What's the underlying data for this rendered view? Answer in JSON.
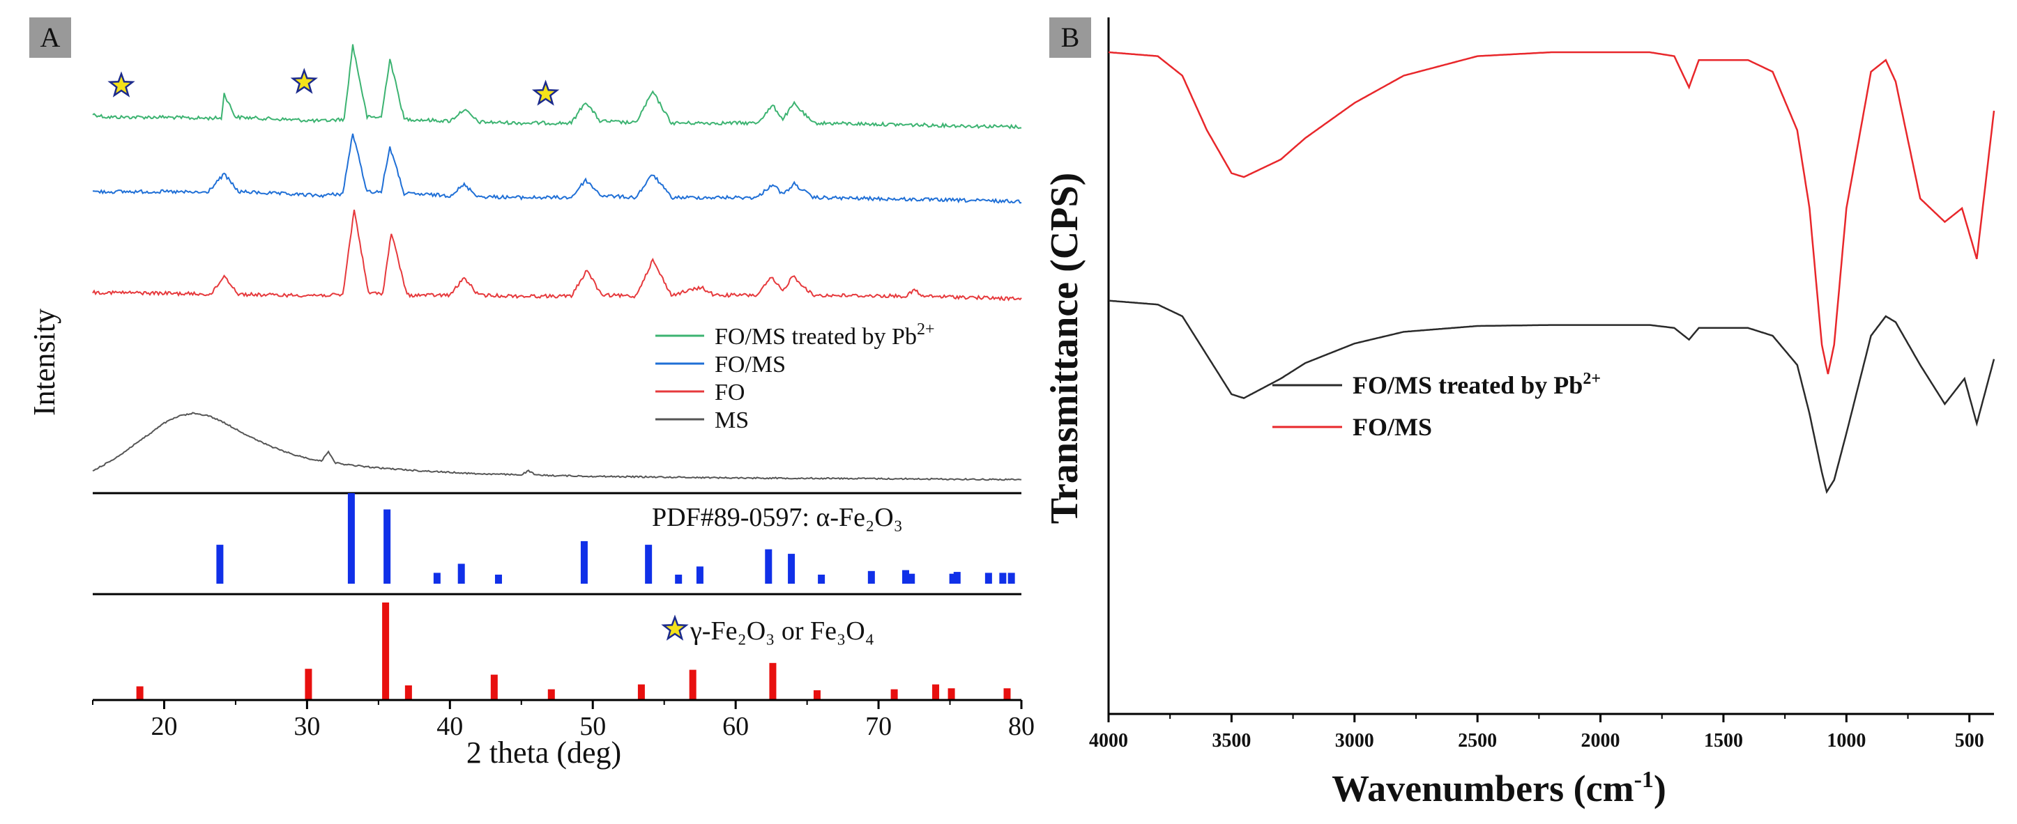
{
  "chart_data": [
    {
      "type": "line",
      "panel_label": "A",
      "xlabel": "2 theta (deg)",
      "ylabel": "Intensity",
      "xlim": [
        15,
        80
      ],
      "xticks": [
        "20",
        "30",
        "40",
        "50",
        "60",
        "70",
        "80"
      ],
      "series": [
        {
          "name": "FO/MS treated by Pb",
          "sup": "2+",
          "color": "#3cb371",
          "points": [
            [
              15,
              0.75
            ],
            [
              16,
              0.6
            ],
            [
              20,
              0.6
            ],
            [
              22,
              0.55
            ],
            [
              24,
              0.55
            ],
            [
              24.2,
              1.8
            ],
            [
              25,
              0.6
            ],
            [
              28,
              0.5
            ],
            [
              31,
              0.4
            ],
            [
              32.6,
              0.5
            ],
            [
              33.2,
              4.3
            ],
            [
              34.2,
              0.6
            ],
            [
              35.2,
              0.6
            ],
            [
              35.8,
              3.6
            ],
            [
              36.8,
              0.5
            ],
            [
              40,
              0.4
            ],
            [
              41,
              1.0
            ],
            [
              42,
              0.35
            ],
            [
              45,
              0.3
            ],
            [
              48.5,
              0.3
            ],
            [
              49.5,
              1.4
            ],
            [
              50.5,
              0.4
            ],
            [
              53,
              0.3
            ],
            [
              54.2,
              1.9
            ],
            [
              55.5,
              0.3
            ],
            [
              61.5,
              0.3
            ],
            [
              62.6,
              1.2
            ],
            [
              63.3,
              0.5
            ],
            [
              64.1,
              1.3
            ],
            [
              65.4,
              0.3
            ],
            [
              80,
              0.1
            ]
          ]
        },
        {
          "name": "FO/MS",
          "sup": "",
          "color": "#1f6fd6",
          "points": [
            [
              15,
              0.6
            ],
            [
              20,
              0.6
            ],
            [
              23,
              0.55
            ],
            [
              24.2,
              1.5
            ],
            [
              25.2,
              0.6
            ],
            [
              28,
              0.5
            ],
            [
              31,
              0.4
            ],
            [
              32.5,
              0.5
            ],
            [
              33.2,
              3.6
            ],
            [
              34.2,
              0.6
            ],
            [
              35.2,
              0.6
            ],
            [
              35.8,
              2.9
            ],
            [
              36.8,
              0.5
            ],
            [
              40,
              0.4
            ],
            [
              41,
              0.95
            ],
            [
              42,
              0.35
            ],
            [
              45,
              0.3
            ],
            [
              48.5,
              0.3
            ],
            [
              49.5,
              1.2
            ],
            [
              50.6,
              0.4
            ],
            [
              53,
              0.3
            ],
            [
              54.2,
              1.5
            ],
            [
              55.5,
              0.3
            ],
            [
              61.5,
              0.3
            ],
            [
              62.6,
              1.0
            ],
            [
              63.3,
              0.45
            ],
            [
              64.1,
              1.0
            ],
            [
              65.4,
              0.3
            ],
            [
              80,
              0.1
            ]
          ]
        },
        {
          "name": "FO",
          "sup": "",
          "color": "#e6393c",
          "points": [
            [
              15,
              0.55
            ],
            [
              20,
              0.5
            ],
            [
              23.3,
              0.45
            ],
            [
              24.2,
              1.4
            ],
            [
              25.2,
              0.45
            ],
            [
              28,
              0.4
            ],
            [
              32.5,
              0.4
            ],
            [
              33.3,
              4.8
            ],
            [
              34.3,
              0.5
            ],
            [
              35.3,
              0.5
            ],
            [
              35.9,
              3.6
            ],
            [
              37,
              0.4
            ],
            [
              40,
              0.4
            ],
            [
              41,
              1.3
            ],
            [
              42,
              0.4
            ],
            [
              45,
              0.35
            ],
            [
              48.5,
              0.35
            ],
            [
              49.6,
              1.7
            ],
            [
              50.6,
              0.4
            ],
            [
              53,
              0.35
            ],
            [
              54.2,
              2.2
            ],
            [
              55.5,
              0.4
            ],
            [
              57.6,
              0.8
            ],
            [
              58.5,
              0.4
            ],
            [
              61.5,
              0.4
            ],
            [
              62.5,
              1.3
            ],
            [
              63.3,
              0.6
            ],
            [
              64,
              1.4
            ],
            [
              65.4,
              0.4
            ],
            [
              72,
              0.35
            ],
            [
              72.5,
              0.7
            ],
            [
              73,
              0.35
            ],
            [
              76,
              0.3
            ],
            [
              80,
              0.2
            ]
          ]
        },
        {
          "name": "MS",
          "sup": "",
          "color": "#555555",
          "points": [
            [
              15,
              0.5
            ],
            [
              16,
              0.9
            ],
            [
              17,
              1.35
            ],
            [
              18,
              1.9
            ],
            [
              19,
              2.4
            ],
            [
              20,
              2.95
            ],
            [
              21,
              3.3
            ],
            [
              22,
              3.45
            ],
            [
              23,
              3.35
            ],
            [
              24,
              3.05
            ],
            [
              25,
              2.65
            ],
            [
              26,
              2.25
            ],
            [
              27,
              1.9
            ],
            [
              28,
              1.6
            ],
            [
              29,
              1.35
            ],
            [
              30,
              1.15
            ],
            [
              31,
              1.0
            ],
            [
              31.5,
              1.5
            ],
            [
              32,
              0.9
            ],
            [
              33,
              0.8
            ],
            [
              35,
              0.65
            ],
            [
              38,
              0.5
            ],
            [
              42,
              0.35
            ],
            [
              45,
              0.3
            ],
            [
              45.5,
              0.5
            ],
            [
              46,
              0.28
            ],
            [
              50,
              0.22
            ],
            [
              60,
              0.14
            ],
            [
              70,
              0.1
            ],
            [
              80,
              0.05
            ]
          ]
        }
      ],
      "legend_note": "legend lists series in order shown",
      "annotation_markers": [
        17,
        29.8,
        46.7
      ],
      "reference_pdf": {
        "label": "PDF#89-0597: α-Fe₂O₃",
        "color": "#1030e8",
        "peaks": [
          [
            23.9,
            0.43
          ],
          [
            33.1,
            1.0
          ],
          [
            35.6,
            0.82
          ],
          [
            39.1,
            0.12
          ],
          [
            40.8,
            0.22
          ],
          [
            43.4,
            0.1
          ],
          [
            49.4,
            0.47
          ],
          [
            53.9,
            0.43
          ],
          [
            56,
            0.1
          ],
          [
            57.5,
            0.19
          ],
          [
            62.3,
            0.38
          ],
          [
            63.9,
            0.33
          ],
          [
            66,
            0.1
          ],
          [
            69.5,
            0.14
          ],
          [
            71.9,
            0.15
          ],
          [
            72.3,
            0.11
          ],
          [
            75.2,
            0.11
          ],
          [
            75.5,
            0.13
          ],
          [
            77.7,
            0.12
          ],
          [
            78.7,
            0.12
          ],
          [
            79.3,
            0.12
          ]
        ]
      },
      "reference_gamma": {
        "label": "γ-Fe₂O₃ or Fe₃O₄",
        "color": "#e8100f",
        "peaks": [
          [
            18.3,
            0.14
          ],
          [
            30.1,
            0.32
          ],
          [
            35.5,
            1.0
          ],
          [
            37.1,
            0.15
          ],
          [
            43.1,
            0.26
          ],
          [
            47.1,
            0.11
          ],
          [
            53.4,
            0.16
          ],
          [
            57,
            0.31
          ],
          [
            62.6,
            0.38
          ],
          [
            65.7,
            0.1
          ],
          [
            71.1,
            0.11
          ],
          [
            74,
            0.16
          ],
          [
            75.1,
            0.12
          ],
          [
            79,
            0.12
          ]
        ]
      }
    },
    {
      "type": "line",
      "panel_label": "B",
      "xlabel": "Wavenumbers (cm",
      "xlabel_sup": "-1",
      "xlabel_close": ")",
      "ylabel": "Transmittance (CPS)",
      "xlim": [
        4000,
        400
      ],
      "xticks": [
        "4000",
        "3500",
        "3000",
        "2500",
        "2000",
        "1500",
        "1000",
        "500"
      ],
      "series": [
        {
          "name": "FO/MS treated by Pb",
          "sup": "2+",
          "color": "#2a2a2a",
          "points": [
            [
              4000,
              -22
            ],
            [
              3800,
              -24
            ],
            [
              3700,
              -30
            ],
            [
              3600,
              -50
            ],
            [
              3500,
              -70
            ],
            [
              3450,
              -72
            ],
            [
              3300,
              -62
            ],
            [
              3200,
              -54
            ],
            [
              3000,
              -44
            ],
            [
              2800,
              -38
            ],
            [
              2500,
              -35
            ],
            [
              2200,
              -34.5
            ],
            [
              1800,
              -34.5
            ],
            [
              1700,
              -36
            ],
            [
              1640,
              -42
            ],
            [
              1600,
              -36
            ],
            [
              1400,
              -36
            ],
            [
              1300,
              -40
            ],
            [
              1200,
              -55
            ],
            [
              1150,
              -80
            ],
            [
              1100,
              -110
            ],
            [
              1080,
              -120
            ],
            [
              1050,
              -114
            ],
            [
              1000,
              -90
            ],
            [
              900,
              -40
            ],
            [
              840,
              -30
            ],
            [
              800,
              -33
            ],
            [
              700,
              -55
            ],
            [
              600,
              -75
            ],
            [
              520,
              -62
            ],
            [
              470,
              -85
            ],
            [
              400,
              -52
            ]
          ]
        },
        {
          "name": "FO/MS",
          "sup": "",
          "color": "#e8272b",
          "points": [
            [
              4000,
              0
            ],
            [
              3800,
              -2
            ],
            [
              3700,
              -12
            ],
            [
              3600,
              -40
            ],
            [
              3500,
              -62
            ],
            [
              3450,
              -64
            ],
            [
              3300,
              -55
            ],
            [
              3200,
              -44
            ],
            [
              3000,
              -26
            ],
            [
              2800,
              -12
            ],
            [
              2500,
              -2
            ],
            [
              2200,
              0
            ],
            [
              1800,
              0
            ],
            [
              1700,
              -2
            ],
            [
              1640,
              -18
            ],
            [
              1600,
              -4
            ],
            [
              1400,
              -4
            ],
            [
              1300,
              -10
            ],
            [
              1200,
              -40
            ],
            [
              1150,
              -80
            ],
            [
              1100,
              -150
            ],
            [
              1075,
              -165
            ],
            [
              1050,
              -150
            ],
            [
              1000,
              -80
            ],
            [
              900,
              -10
            ],
            [
              840,
              -4
            ],
            [
              800,
              -15
            ],
            [
              700,
              -75
            ],
            [
              600,
              -87
            ],
            [
              530,
              -80
            ],
            [
              470,
              -106
            ],
            [
              400,
              -30
            ]
          ]
        }
      ]
    }
  ]
}
